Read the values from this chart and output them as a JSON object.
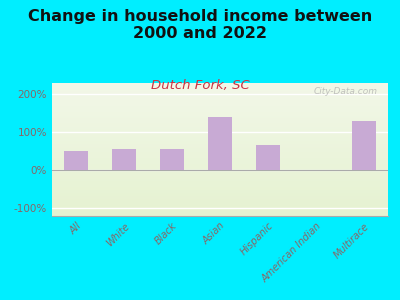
{
  "title": "Change in household income between\n2000 and 2022",
  "subtitle": "Dutch Fork, SC",
  "categories": [
    "All",
    "White",
    "Black",
    "Asian",
    "Hispanic",
    "American Indian",
    "Multirace"
  ],
  "values": [
    50,
    55,
    55,
    140,
    65,
    0,
    130
  ],
  "bar_color": "#c8aad4",
  "bg_outer": "#00eeff",
  "bg_chart_top": "#eef3e4",
  "bg_chart_bottom": "#e2eecc",
  "ylim": [
    -120,
    230
  ],
  "yticks": [
    -100,
    0,
    100,
    200
  ],
  "ytick_labels": [
    "-100%",
    "0%",
    "100%",
    "200%"
  ],
  "title_fontsize": 11.5,
  "subtitle_fontsize": 9.5,
  "subtitle_color": "#cc3344",
  "tick_color": "#886666",
  "watermark": "City-Data.com",
  "title_color": "#111111"
}
